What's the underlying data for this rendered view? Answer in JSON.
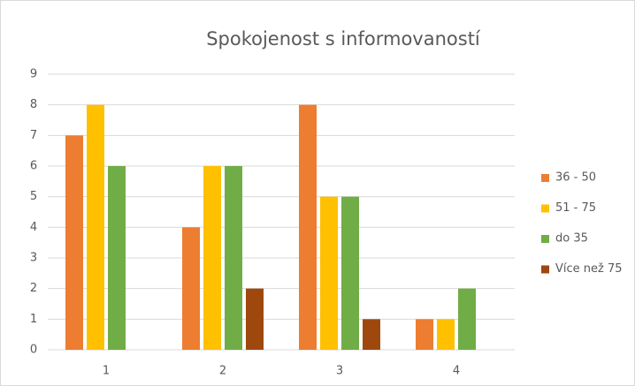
{
  "chart_data": {
    "type": "bar",
    "title": "Spokojenost s informovaností",
    "categories": [
      "1",
      "2",
      "3",
      "4"
    ],
    "series": [
      {
        "name": "36 - 50",
        "color": "#ED7D31",
        "values": [
          7,
          4,
          8,
          1
        ]
      },
      {
        "name": "51 - 75",
        "color": "#FFC000",
        "values": [
          8,
          6,
          5,
          1
        ]
      },
      {
        "name": "do 35",
        "color": "#70AD47",
        "values": [
          6,
          6,
          5,
          2
        ]
      },
      {
        "name": "Více než 75",
        "color": "#9E480E",
        "values": [
          null,
          2,
          1,
          null
        ]
      }
    ],
    "ylim": [
      0,
      9
    ],
    "yticks": [
      0,
      1,
      2,
      3,
      4,
      5,
      6,
      7,
      8,
      9
    ],
    "grid": true,
    "legend": "right"
  }
}
